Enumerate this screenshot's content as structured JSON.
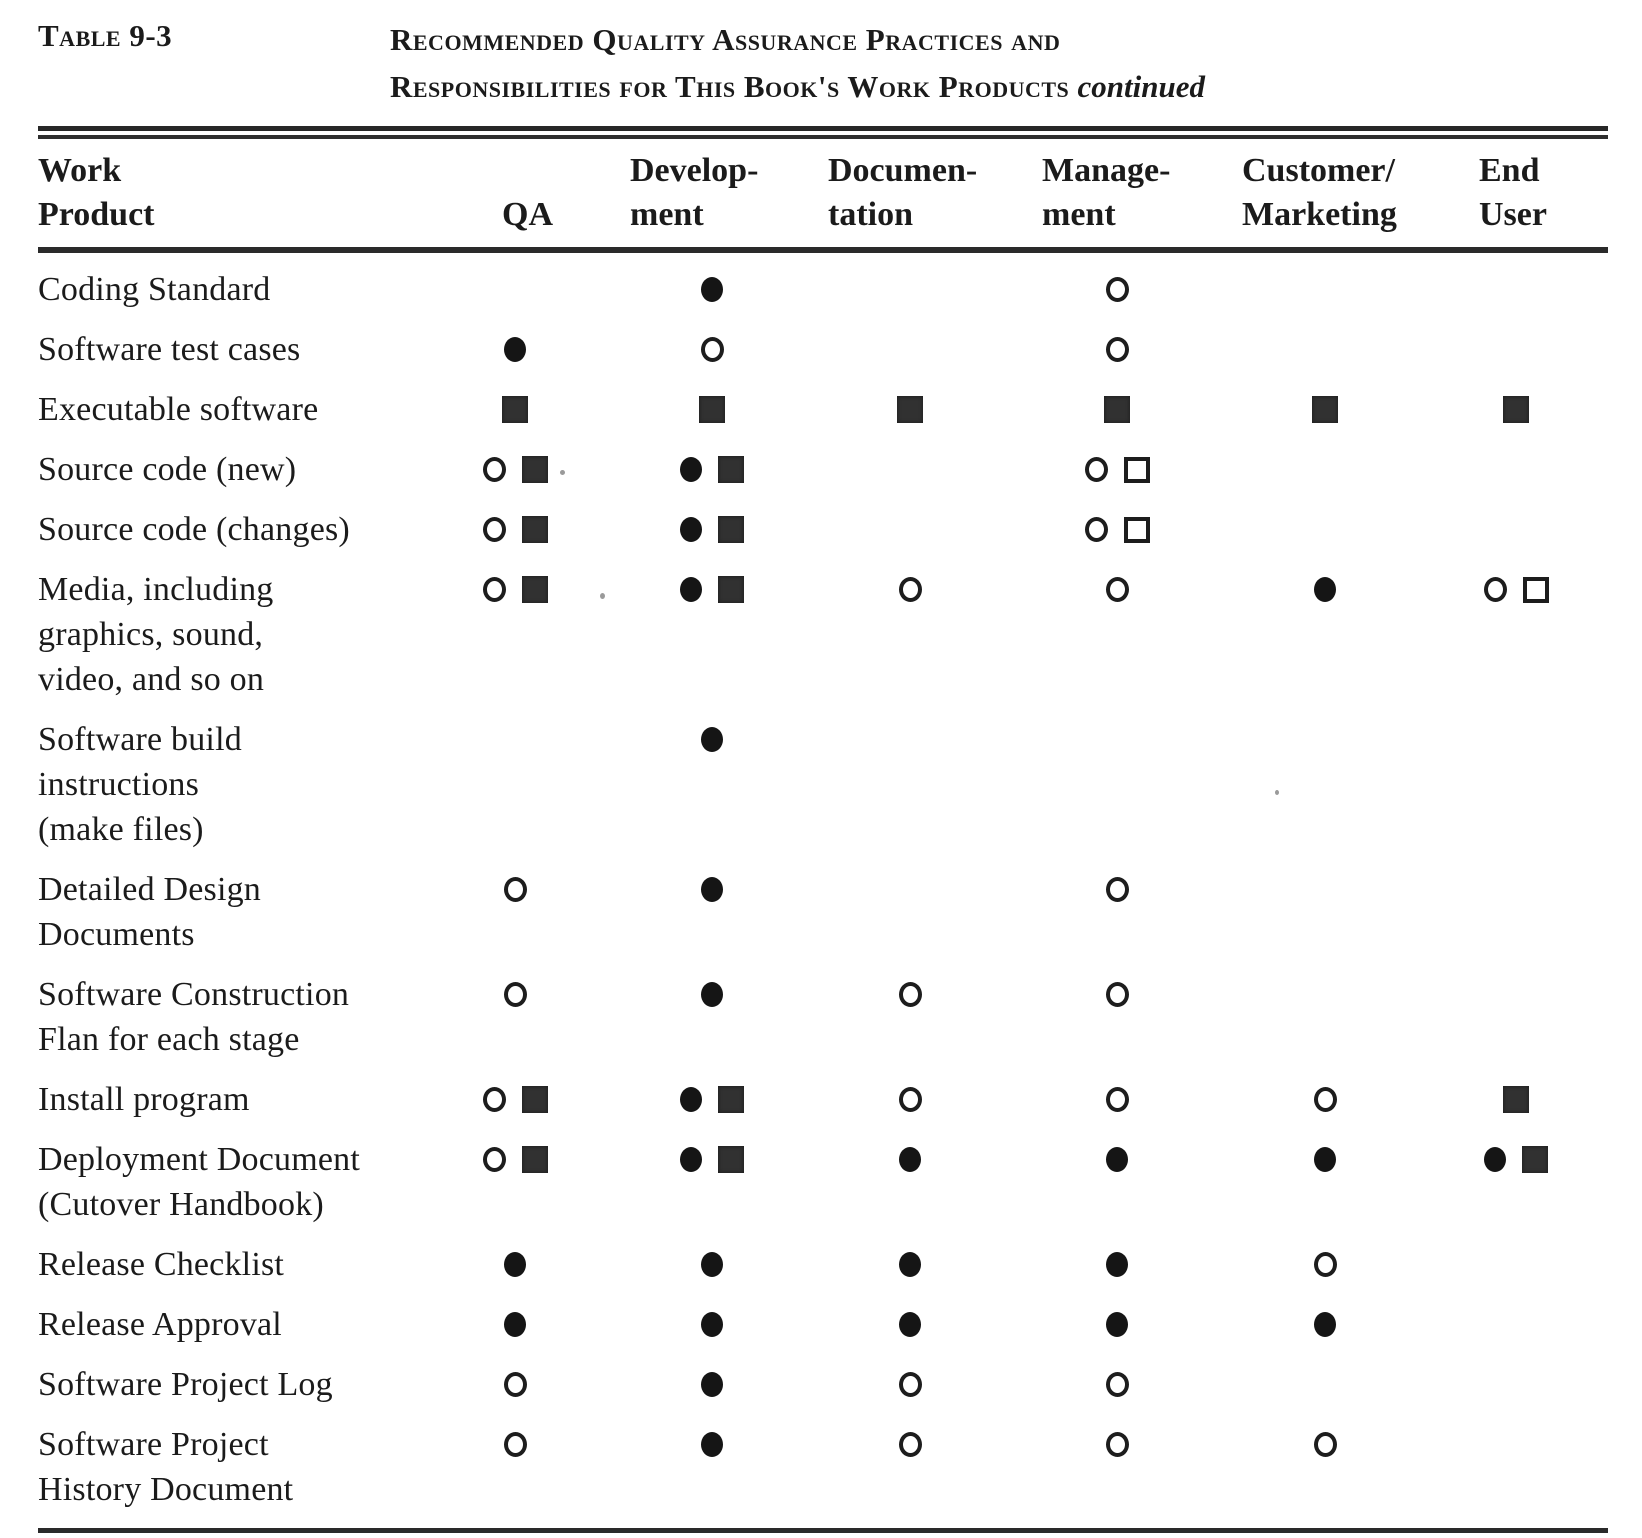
{
  "colors": {
    "ink": "#1b1b1b",
    "paper": "#ffffff"
  },
  "caption": {
    "label": "Table 9-3",
    "title_line1": "Recommended Quality Assurance Practices and",
    "title_line2": "Responsibilities for This Book's Work Products",
    "continued": "continued"
  },
  "table": {
    "columns": [
      "Work\nProduct",
      "QA",
      "Develop-\nment",
      "Documen-\ntation",
      "Manage-\nment",
      "Customer/\nMarketing",
      "End\nUser"
    ],
    "symbol_legend": [
      "filled-circle",
      "open-circle",
      "filled-square",
      "open-square"
    ],
    "rows": [
      {
        "label": "Coding Standard",
        "cells": [
          [],
          [
            "filled-circle"
          ],
          [],
          [
            "open-circle"
          ],
          [],
          []
        ]
      },
      {
        "label": "Software test cases",
        "cells": [
          [
            "filled-circle"
          ],
          [
            "open-circle"
          ],
          [],
          [
            "open-circle"
          ],
          [],
          []
        ]
      },
      {
        "label": "Executable software",
        "cells": [
          [
            "filled-square"
          ],
          [
            "filled-square"
          ],
          [
            "filled-square"
          ],
          [
            "filled-square"
          ],
          [
            "filled-square"
          ],
          [
            "filled-square"
          ]
        ]
      },
      {
        "label": "Source code (new)",
        "cells": [
          [
            "open-circle",
            "filled-square"
          ],
          [
            "filled-circle",
            "filled-square"
          ],
          [],
          [
            "open-circle",
            "open-square"
          ],
          [],
          []
        ]
      },
      {
        "label": "Source code (changes)",
        "cells": [
          [
            "open-circle",
            "filled-square"
          ],
          [
            "filled-circle",
            "filled-square"
          ],
          [],
          [
            "open-circle",
            "open-square"
          ],
          [],
          []
        ]
      },
      {
        "label": "Media, including\ngraphics, sound,\nvideo, and so on",
        "cells": [
          [
            "open-circle",
            "filled-square"
          ],
          [
            "filled-circle",
            "filled-square"
          ],
          [
            "open-circle"
          ],
          [
            "open-circle"
          ],
          [
            "filled-circle"
          ],
          [
            "open-circle",
            "open-square"
          ]
        ]
      },
      {
        "label": "Software build\ninstructions\n(make files)",
        "cells": [
          [],
          [
            "filled-circle"
          ],
          [],
          [],
          [],
          []
        ]
      },
      {
        "label": "Detailed Design\nDocuments",
        "cells": [
          [
            "open-circle"
          ],
          [
            "filled-circle"
          ],
          [],
          [
            "open-circle"
          ],
          [],
          []
        ]
      },
      {
        "label": "Software Construction\nFlan for each stage",
        "cells": [
          [
            "open-circle"
          ],
          [
            "filled-circle"
          ],
          [
            "open-circle"
          ],
          [
            "open-circle"
          ],
          [],
          []
        ]
      },
      {
        "label": "Install program",
        "cells": [
          [
            "open-circle",
            "filled-square"
          ],
          [
            "filled-circle",
            "filled-square"
          ],
          [
            "open-circle"
          ],
          [
            "open-circle"
          ],
          [
            "open-circle"
          ],
          [
            "filled-square"
          ]
        ]
      },
      {
        "label": "Deployment Document\n(Cutover Handbook)",
        "cells": [
          [
            "open-circle",
            "filled-square"
          ],
          [
            "filled-circle",
            "filled-square"
          ],
          [
            "filled-circle"
          ],
          [
            "filled-circle"
          ],
          [
            "filled-circle"
          ],
          [
            "filled-circle",
            "filled-square"
          ]
        ]
      },
      {
        "label": "Release Checklist",
        "cells": [
          [
            "filled-circle"
          ],
          [
            "filled-circle"
          ],
          [
            "filled-circle"
          ],
          [
            "filled-circle"
          ],
          [
            "open-circle"
          ],
          []
        ]
      },
      {
        "label": "Release Approval",
        "cells": [
          [
            "filled-circle"
          ],
          [
            "filled-circle"
          ],
          [
            "filled-circle"
          ],
          [
            "filled-circle"
          ],
          [
            "filled-circle"
          ],
          []
        ]
      },
      {
        "label": "Software Project Log",
        "cells": [
          [
            "open-circle"
          ],
          [
            "filled-circle"
          ],
          [
            "open-circle"
          ],
          [
            "open-circle"
          ],
          [],
          []
        ]
      },
      {
        "label": "Software Project\nHistory Document",
        "cells": [
          [
            "open-circle"
          ],
          [
            "filled-circle"
          ],
          [
            "open-circle"
          ],
          [
            "open-circle"
          ],
          [
            "open-circle"
          ],
          []
        ]
      }
    ]
  }
}
